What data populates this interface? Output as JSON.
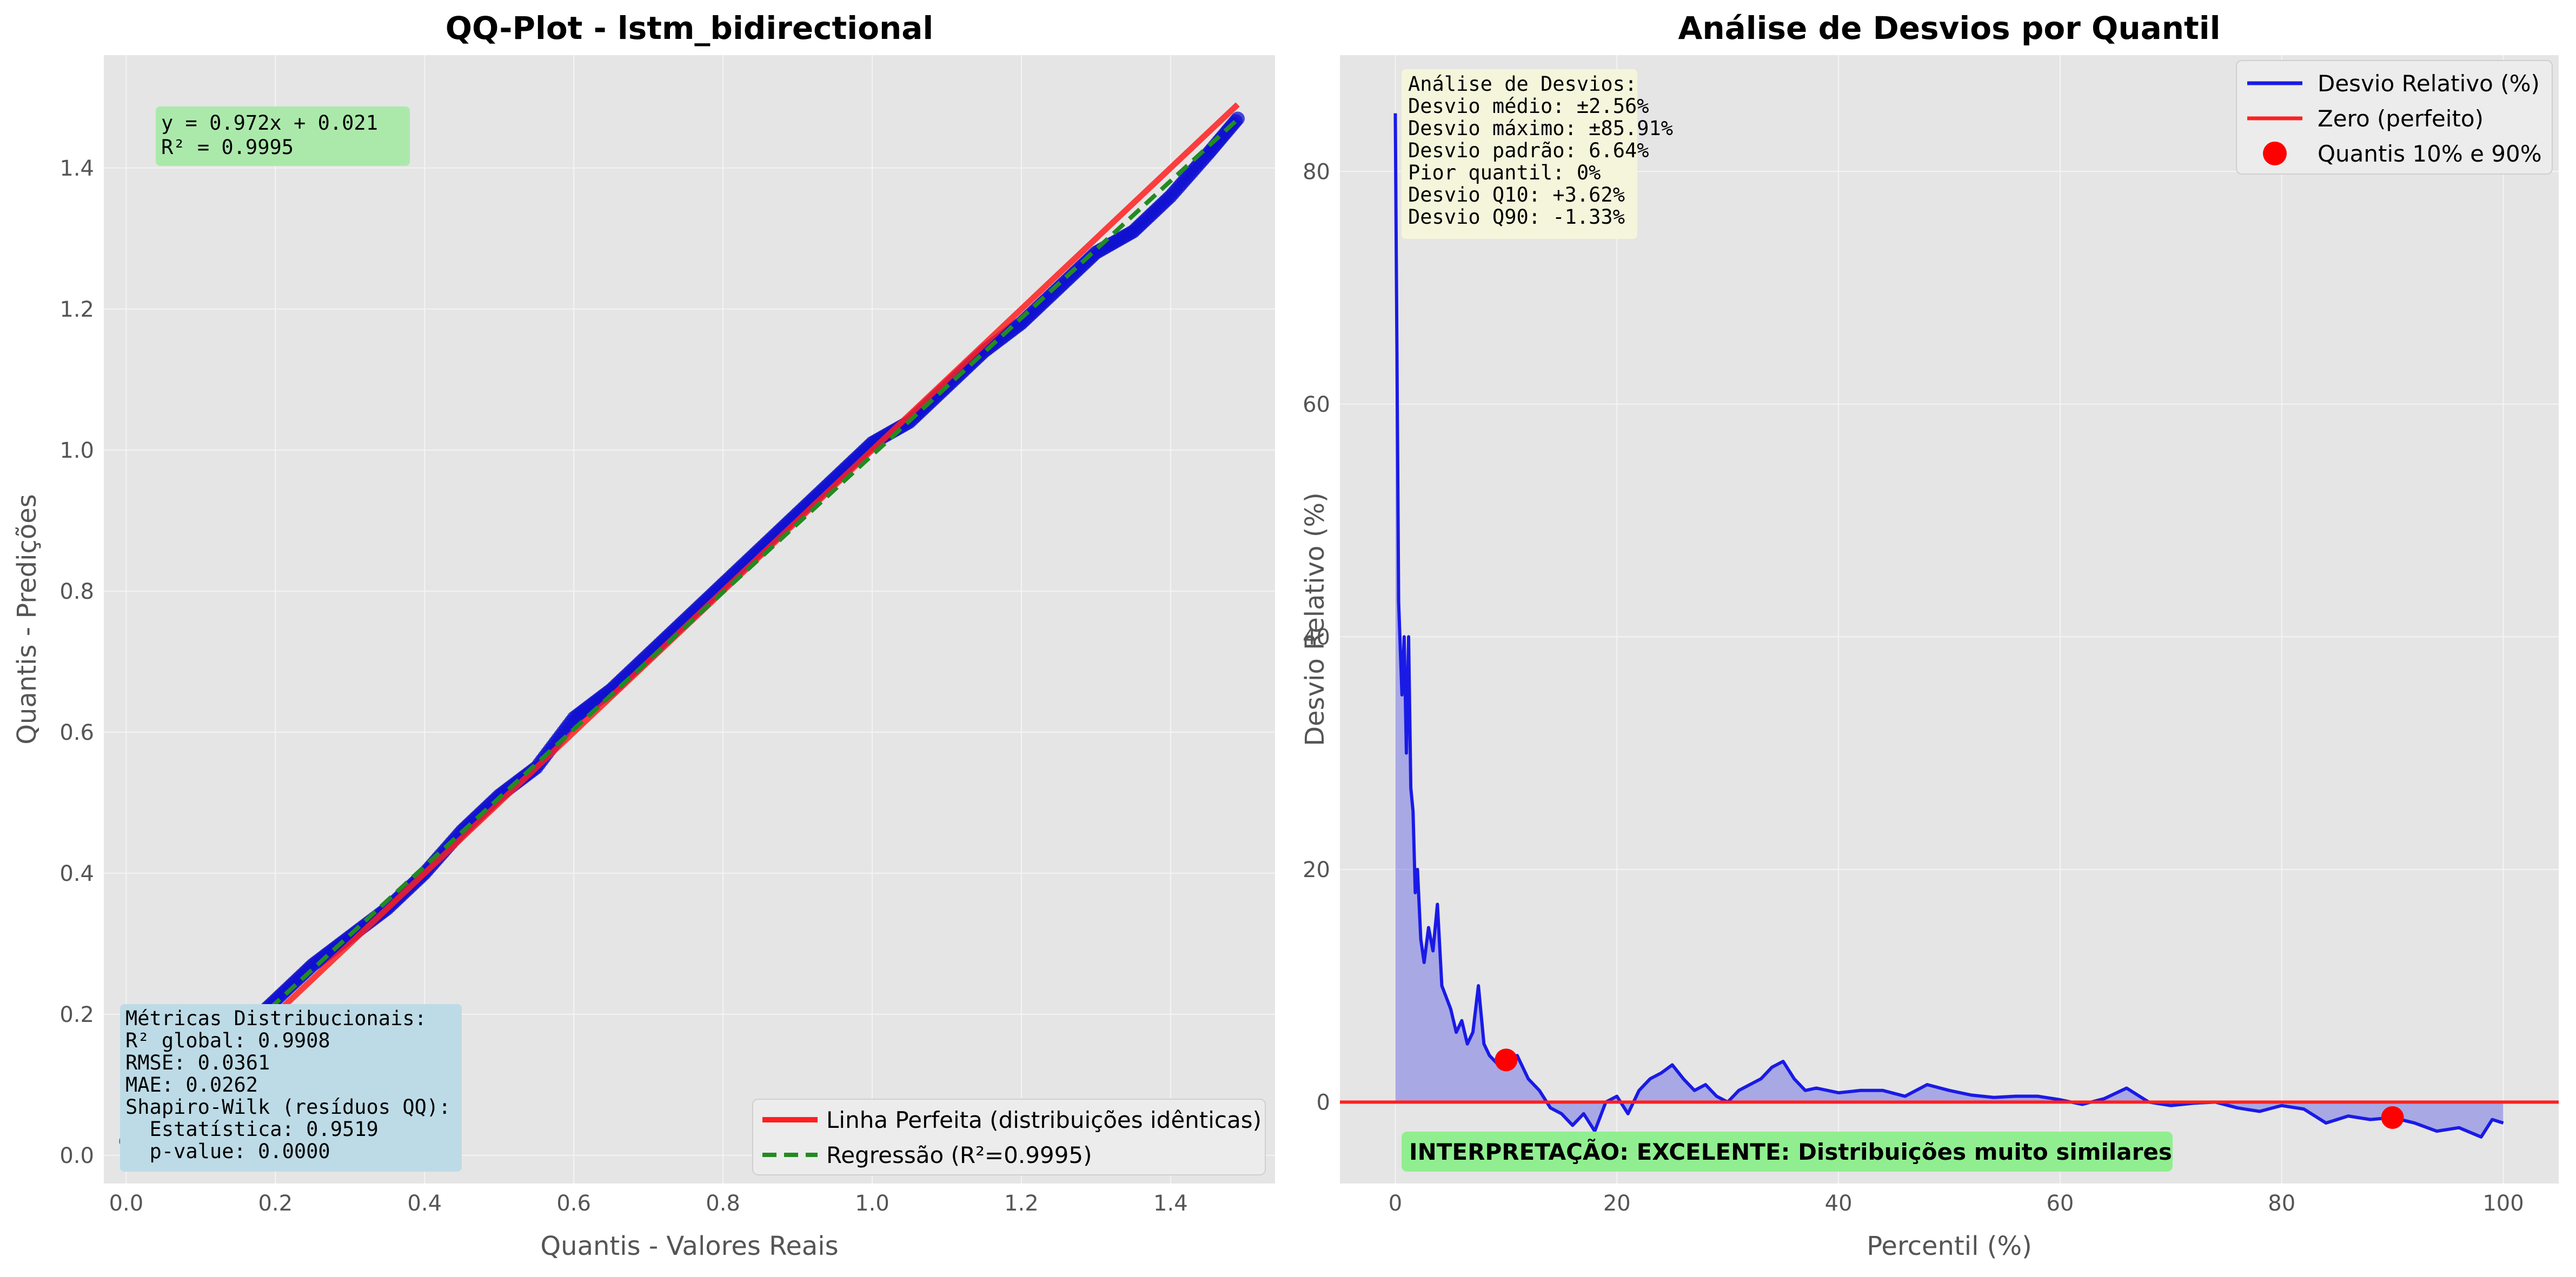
{
  "chart_data": [
    {
      "type": "scatter",
      "title": "QQ-Plot - lstm_bidirectional",
      "xlabel": "Quantis - Valores Reais",
      "ylabel": "Quantis - Predições",
      "xlim": [
        -0.03,
        1.54
      ],
      "ylim": [
        -0.04,
        1.56
      ],
      "xticks": [
        "0.0",
        "0.2",
        "0.4",
        "0.6",
        "0.8",
        "1.0",
        "1.2",
        "1.4"
      ],
      "yticks": [
        "0.0",
        "0.2",
        "0.4",
        "0.6",
        "0.8",
        "1.0",
        "1.2",
        "1.4"
      ],
      "grid": true,
      "legend_position": "lower-right",
      "series": [
        {
          "name": "Linha Perfeita (distribuições idênticas)",
          "kind": "line",
          "color": "#ff2020",
          "x": [
            0.0,
            1.49
          ],
          "y": [
            0.0,
            1.49
          ]
        },
        {
          "name": "Regressão (R²=0.9995)",
          "kind": "dashed-line",
          "color": "#228b22",
          "x": [
            0.0,
            1.49
          ],
          "y": [
            0.021,
            1.469
          ]
        },
        {
          "name": "",
          "kind": "points",
          "color": "#1010d0",
          "x": [
            0.0,
            0.05,
            0.1,
            0.15,
            0.2,
            0.25,
            0.3,
            0.35,
            0.4,
            0.45,
            0.5,
            0.55,
            0.6,
            0.65,
            0.7,
            0.75,
            0.8,
            0.85,
            0.9,
            0.95,
            1.0,
            1.05,
            1.1,
            1.15,
            1.2,
            1.25,
            1.3,
            1.35,
            1.4,
            1.45,
            1.49
          ],
          "y": [
            0.02,
            0.07,
            0.12,
            0.17,
            0.22,
            0.27,
            0.31,
            0.35,
            0.4,
            0.46,
            0.51,
            0.55,
            0.62,
            0.66,
            0.71,
            0.76,
            0.81,
            0.86,
            0.91,
            0.96,
            1.01,
            1.04,
            1.09,
            1.14,
            1.18,
            1.23,
            1.28,
            1.31,
            1.36,
            1.42,
            1.47
          ]
        }
      ],
      "annotations": {
        "equation": [
          "y = 0.972x + 0.021",
          "R² = 0.9995"
        ],
        "metrics": [
          "Métricas Distribucionais:",
          "R² global: 0.9908",
          "RMSE: 0.0361",
          "MAE: 0.0262",
          "Shapiro-Wilk (resíduos QQ):",
          "  Estatística: 0.9519",
          "  p-value: 0.0000"
        ]
      }
    },
    {
      "type": "area",
      "title": "Análise de Desvios por Quantil",
      "xlabel": "Percentil (%)",
      "ylabel": "Desvio Relativo (%)",
      "xlim": [
        -5,
        105
      ],
      "ylim": [
        -7,
        90
      ],
      "xticks": [
        "0",
        "20",
        "40",
        "60",
        "80",
        "100"
      ],
      "yticks": [
        "0",
        "20",
        "40",
        "60",
        "80"
      ],
      "grid": true,
      "legend_position": "upper-right",
      "series": [
        {
          "name": "Desvio Relativo (%)",
          "kind": "line",
          "color": "#1a1ae6",
          "x": [
            0,
            0.3,
            0.6,
            0.8,
            1.0,
            1.2,
            1.4,
            1.6,
            1.8,
            2.0,
            2.3,
            2.6,
            3.0,
            3.4,
            3.8,
            4.2,
            4.6,
            5.0,
            5.5,
            6.0,
            6.5,
            7.0,
            7.5,
            8.0,
            8.5,
            9.0,
            9.5,
            10.0,
            11.0,
            12.0,
            13.0,
            14.0,
            15.0,
            16.0,
            17.0,
            18.0,
            19.0,
            20.0,
            21.0,
            22.0,
            23.0,
            24.0,
            25.0,
            26.0,
            27.0,
            28.0,
            29.0,
            30.0,
            31.0,
            32.0,
            33.0,
            34.0,
            35.0,
            36.0,
            37.0,
            38.0,
            40.0,
            42.0,
            44.0,
            46.0,
            48.0,
            50.0,
            52.0,
            54.0,
            56.0,
            58.0,
            60.0,
            62.0,
            64.0,
            66.0,
            68.0,
            70.0,
            72.0,
            74.0,
            76.0,
            78.0,
            80.0,
            82.0,
            84.0,
            86.0,
            88.0,
            90.0,
            92.0,
            94.0,
            96.0,
            98.0,
            99.0,
            100.0
          ],
          "y": [
            85,
            43,
            35,
            40,
            30,
            40,
            27,
            25,
            18,
            20,
            14,
            12,
            15,
            13,
            17,
            10,
            9,
            8,
            6,
            7,
            5,
            6,
            10,
            5,
            4,
            3.5,
            3,
            3.62,
            4,
            2,
            1,
            -0.5,
            -1,
            -2,
            -1,
            -2.5,
            0,
            0.5,
            -1,
            1,
            2,
            2.5,
            3.2,
            2,
            1,
            1.5,
            0.5,
            0,
            1,
            1.5,
            2,
            3,
            3.5,
            2,
            1,
            1.2,
            0.8,
            1,
            1,
            0.5,
            1.5,
            1,
            0.6,
            0.4,
            0.5,
            0.5,
            0.2,
            -0.2,
            0.3,
            1.2,
            0,
            -0.3,
            -0.1,
            0,
            -0.5,
            -0.8,
            -0.3,
            -0.6,
            -1.8,
            -1.2,
            -1.5,
            -1.33,
            -1.8,
            -2.5,
            -2.2,
            -3,
            -1.5,
            -1.8
          ]
        },
        {
          "name": "Zero (perfeito)",
          "kind": "hline",
          "color": "#ff2020",
          "y": 0
        },
        {
          "name": "Quantis 10% e 90%",
          "kind": "points",
          "color": "#ff0000",
          "x": [
            10,
            90
          ],
          "y": [
            3.62,
            -1.33
          ]
        }
      ],
      "annotations": {
        "stats": [
          "Análise de Desvios:",
          "Desvio médio: ±2.56%",
          "Desvio máximo: ±85.91%",
          "Desvio padrão: 6.64%",
          "Pior quantil: 0%",
          "Desvio Q10: +3.62%",
          "Desvio Q90: -1.33%"
        ],
        "interpretation": "INTERPRETAÇÃO: EXCELENTE: Distribuições muito similares"
      }
    }
  ],
  "colors": {
    "plot_background": "#e5e5e5",
    "grid": "#f4f4f4",
    "equation_box": "#abe9ab",
    "metrics_box": "#bddbe6",
    "stats_box": "#f5f5dc",
    "interpretation_box": "#90ee90"
  }
}
